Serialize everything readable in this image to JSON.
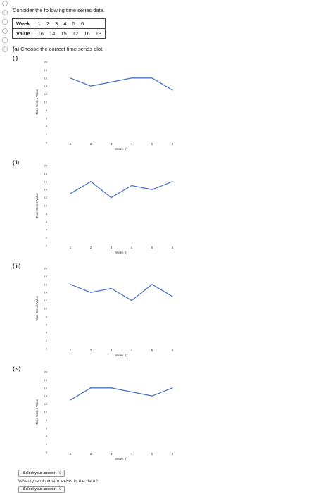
{
  "intro": "Consider the following time series data.",
  "table": {
    "row1_header": "Week",
    "weeks": [
      "1",
      "2",
      "3",
      "4",
      "5",
      "6"
    ],
    "row2_header": "Value",
    "values": [
      "16",
      "14",
      "15",
      "12",
      "16",
      "13"
    ]
  },
  "part_a": {
    "prefix": "(a)",
    "text": "Choose the correct time series plot."
  },
  "options": [
    {
      "label": "(i)"
    },
    {
      "label": "(ii)"
    },
    {
      "label": "(iii)"
    },
    {
      "label": "(iv)"
    }
  ],
  "chart_data": [
    {
      "type": "line",
      "x": [
        1,
        2,
        3,
        4,
        5,
        6
      ],
      "values": [
        16,
        14,
        15,
        16,
        16,
        13
      ],
      "xlabel": "Week (t)",
      "ylabel": "Time Series Value",
      "ylim": [
        0,
        20
      ],
      "yticks": [
        0,
        2,
        4,
        6,
        8,
        10,
        12,
        14,
        16,
        18,
        20
      ],
      "color": "#4a72c8"
    },
    {
      "type": "line",
      "x": [
        1,
        2,
        3,
        4,
        5,
        6
      ],
      "values": [
        13,
        16,
        12,
        15,
        14,
        16
      ],
      "xlabel": "Week (t)",
      "ylabel": "Time Series Value",
      "ylim": [
        0,
        20
      ],
      "yticks": [
        0,
        2,
        4,
        6,
        8,
        10,
        12,
        14,
        16,
        18,
        20
      ],
      "color": "#4a72c8"
    },
    {
      "type": "line",
      "x": [
        1,
        2,
        3,
        4,
        5,
        6
      ],
      "values": [
        16,
        14,
        15,
        12,
        16,
        13
      ],
      "xlabel": "Week (t)",
      "ylabel": "Time Series Value",
      "ylim": [
        0,
        20
      ],
      "yticks": [
        0,
        2,
        4,
        6,
        8,
        10,
        12,
        14,
        16,
        18,
        20
      ],
      "color": "#4a72c8"
    },
    {
      "type": "line",
      "x": [
        1,
        2,
        3,
        4,
        5,
        6
      ],
      "values": [
        13,
        16,
        16,
        15,
        14,
        16
      ],
      "xlabel": "Week (t)",
      "ylabel": "Time Series Value",
      "ylim": [
        0,
        20
      ],
      "yticks": [
        0,
        2,
        4,
        6,
        8,
        10,
        12,
        14,
        16,
        18,
        20
      ],
      "color": "#4a72c8"
    }
  ],
  "select1": {
    "label": "- Select your answer - ♢"
  },
  "question2": "What type of pattern exists in the data?",
  "select2": {
    "label": "- Select your answer - ♢"
  }
}
